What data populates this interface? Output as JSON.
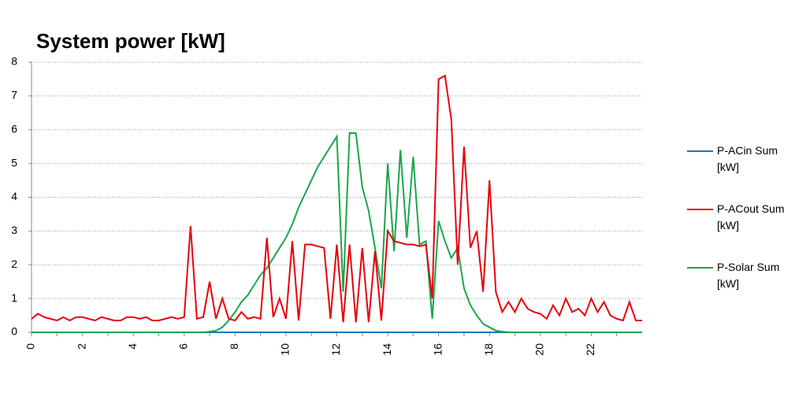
{
  "chart_data": {
    "type": "line",
    "title": "System power [kW]",
    "x": [
      0,
      0.25,
      0.5,
      0.75,
      1,
      1.25,
      1.5,
      1.75,
      2,
      2.25,
      2.5,
      2.75,
      3,
      3.25,
      3.5,
      3.75,
      4,
      4.25,
      4.5,
      4.75,
      5,
      5.25,
      5.5,
      5.75,
      6,
      6.25,
      6.5,
      6.75,
      7,
      7.25,
      7.5,
      7.75,
      8,
      8.25,
      8.5,
      8.75,
      9,
      9.25,
      9.5,
      9.75,
      10,
      10.25,
      10.5,
      10.75,
      11,
      11.25,
      11.5,
      11.75,
      12,
      12.25,
      12.5,
      12.75,
      13,
      13.25,
      13.5,
      13.75,
      14,
      14.25,
      14.5,
      14.75,
      15,
      15.25,
      15.5,
      15.75,
      16,
      16.25,
      16.5,
      16.75,
      17,
      17.25,
      17.5,
      17.75,
      18,
      18.25,
      18.5,
      18.75,
      19,
      19.25,
      19.5,
      19.75,
      20,
      20.25,
      20.5,
      20.75,
      21,
      21.25,
      21.5,
      21.75,
      22,
      22.25,
      22.5,
      22.75,
      23,
      23.25,
      23.5,
      23.75,
      24
    ],
    "series": [
      {
        "name": "P-ACin Sum [kW]",
        "color": "#1f77b4",
        "values": [
          0,
          0,
          0,
          0,
          0,
          0,
          0,
          0,
          0,
          0,
          0,
          0,
          0,
          0,
          0,
          0,
          0,
          0,
          0,
          0,
          0,
          0,
          0,
          0,
          0,
          0,
          0,
          0,
          0,
          0,
          0,
          0,
          0,
          0,
          0,
          0,
          0,
          0,
          0,
          0,
          0,
          0,
          0,
          0,
          0,
          0,
          0,
          0,
          0,
          0,
          0,
          0,
          0,
          0,
          0,
          0,
          0,
          0,
          0,
          0,
          0,
          0,
          0,
          0,
          0,
          0,
          0,
          0,
          0,
          0,
          0,
          0,
          0,
          0,
          0,
          0,
          0,
          0,
          0,
          0,
          0,
          0,
          0,
          0,
          0,
          0,
          0,
          0,
          0,
          0,
          0,
          0,
          0,
          0,
          0,
          0,
          0
        ]
      },
      {
        "name": "P-ACout Sum [kW]",
        "color": "#e8000b",
        "values": [
          0.4,
          0.55,
          0.45,
          0.4,
          0.35,
          0.45,
          0.35,
          0.45,
          0.45,
          0.4,
          0.35,
          0.45,
          0.4,
          0.35,
          0.35,
          0.45,
          0.45,
          0.4,
          0.45,
          0.35,
          0.35,
          0.4,
          0.45,
          0.4,
          0.45,
          3.15,
          0.4,
          0.45,
          1.5,
          0.4,
          1.0,
          0.4,
          0.35,
          0.6,
          0.4,
          0.45,
          0.4,
          2.8,
          0.45,
          1.0,
          0.4,
          2.7,
          0.35,
          2.6,
          2.6,
          2.55,
          2.5,
          0.4,
          2.6,
          0.3,
          2.6,
          0.3,
          2.5,
          0.3,
          2.4,
          0.35,
          3.0,
          2.7,
          2.65,
          2.6,
          2.6,
          2.55,
          2.6,
          1.0,
          7.5,
          7.6,
          6.3,
          2.0,
          5.5,
          2.5,
          3.0,
          1.2,
          4.5,
          1.2,
          0.6,
          0.9,
          0.6,
          1.0,
          0.7,
          0.6,
          0.55,
          0.4,
          0.8,
          0.5,
          1.0,
          0.6,
          0.7,
          0.5,
          1.0,
          0.6,
          0.9,
          0.5,
          0.4,
          0.35,
          0.9,
          0.35,
          0.35
        ]
      },
      {
        "name": "P-Solar Sum [kW]",
        "color": "#1aa64b",
        "values": [
          0,
          0,
          0,
          0,
          0,
          0,
          0,
          0,
          0,
          0,
          0,
          0,
          0,
          0,
          0,
          0,
          0,
          0,
          0,
          0,
          0,
          0,
          0,
          0,
          0,
          0,
          0,
          0,
          0.02,
          0.05,
          0.15,
          0.35,
          0.6,
          0.9,
          1.1,
          1.4,
          1.7,
          1.9,
          2.2,
          2.5,
          2.8,
          3.2,
          3.7,
          4.1,
          4.5,
          4.9,
          5.2,
          5.5,
          5.8,
          1.2,
          5.9,
          5.9,
          4.3,
          3.6,
          2.5,
          1.3,
          5.0,
          2.4,
          5.4,
          2.8,
          5.2,
          2.6,
          2.7,
          0.4,
          3.3,
          2.7,
          2.2,
          2.5,
          1.3,
          0.8,
          0.5,
          0.25,
          0.15,
          0.05,
          0.02,
          0,
          0,
          0,
          0,
          0,
          0,
          0,
          0,
          0,
          0,
          0,
          0,
          0,
          0,
          0,
          0,
          0,
          0,
          0,
          0,
          0,
          0
        ]
      }
    ],
    "xlim": [
      0,
      24
    ],
    "xticks": [
      0,
      2,
      4,
      6,
      8,
      10,
      12,
      14,
      16,
      18,
      20,
      22
    ],
    "ylim": [
      0,
      8
    ],
    "yticks": [
      0,
      1,
      2,
      3,
      4,
      5,
      6,
      7,
      8
    ],
    "grid": true,
    "legend": "right"
  }
}
